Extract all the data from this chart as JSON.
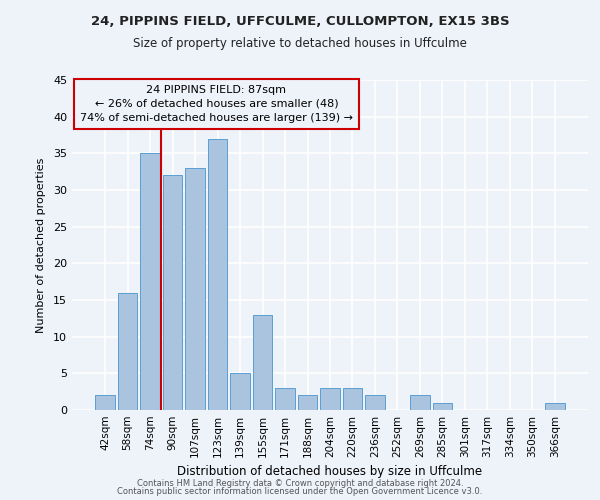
{
  "title1": "24, PIPPINS FIELD, UFFCULME, CULLOMPTON, EX15 3BS",
  "title2": "Size of property relative to detached houses in Uffculme",
  "xlabel": "Distribution of detached houses by size in Uffculme",
  "ylabel": "Number of detached properties",
  "categories": [
    "42sqm",
    "58sqm",
    "74sqm",
    "90sqm",
    "107sqm",
    "123sqm",
    "139sqm",
    "155sqm",
    "171sqm",
    "188sqm",
    "204sqm",
    "220sqm",
    "236sqm",
    "252sqm",
    "269sqm",
    "285sqm",
    "301sqm",
    "317sqm",
    "334sqm",
    "350sqm",
    "366sqm"
  ],
  "values": [
    2,
    16,
    35,
    32,
    33,
    37,
    5,
    13,
    3,
    2,
    3,
    3,
    2,
    0,
    2,
    1,
    0,
    0,
    0,
    0,
    1
  ],
  "bar_color": "#aac4e0",
  "bar_edge_color": "#5a9fd4",
  "vline_x_index": 2,
  "vline_color": "#cc0000",
  "annotation_text": "24 PIPPINS FIELD: 87sqm\n← 26% of detached houses are smaller (48)\n74% of semi-detached houses are larger (139) →",
  "annotation_box_color": "#cc0000",
  "ylim": [
    0,
    45
  ],
  "yticks": [
    0,
    5,
    10,
    15,
    20,
    25,
    30,
    35,
    40,
    45
  ],
  "footer1": "Contains HM Land Registry data © Crown copyright and database right 2024.",
  "footer2": "Contains public sector information licensed under the Open Government Licence v3.0.",
  "background_color": "#eef2f9",
  "grid_color": "#ffffff"
}
